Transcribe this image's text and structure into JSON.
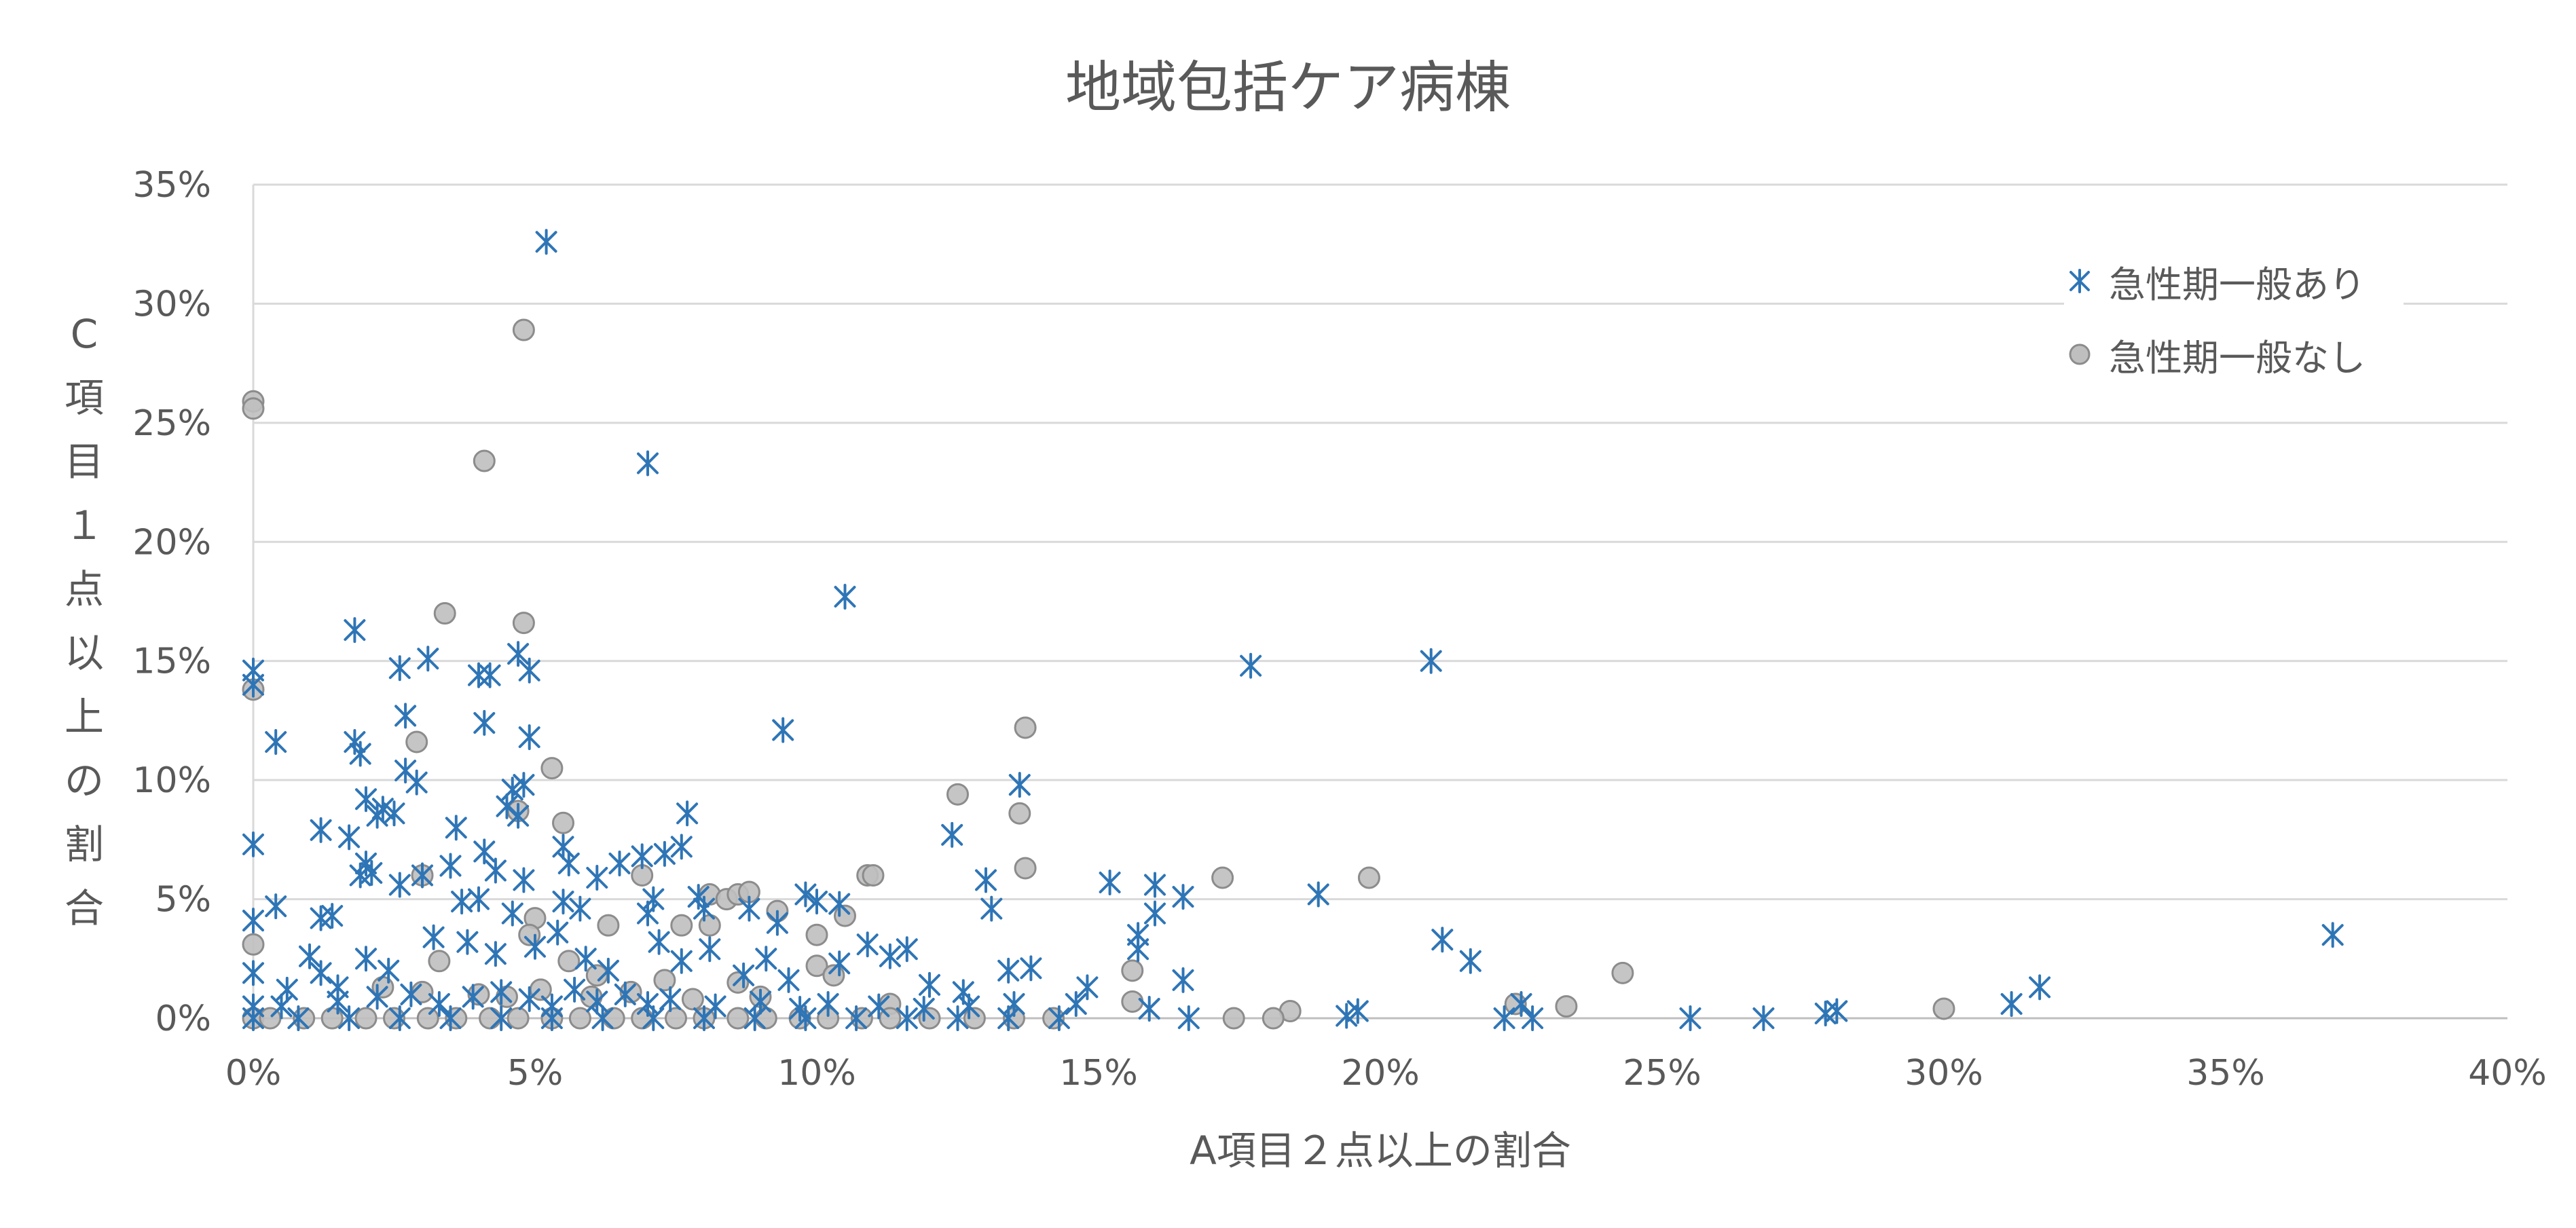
{
  "chart_data": {
    "type": "scatter",
    "title": "地域包括ケア病棟",
    "xlabel": "A項目２点以上の割合",
    "ylabel": "C項目１点以上の割合",
    "xlim": [
      0,
      40
    ],
    "ylim": [
      0,
      35
    ],
    "x_ticks": [
      0,
      5,
      10,
      15,
      20,
      25,
      30,
      35,
      40
    ],
    "y_ticks": [
      0,
      5,
      10,
      15,
      20,
      25,
      30,
      35
    ],
    "x_tick_labels": [
      "0%",
      "5%",
      "10%",
      "15%",
      "20%",
      "25%",
      "30%",
      "35%",
      "40%"
    ],
    "y_tick_labels": [
      "0%",
      "5%",
      "10%",
      "15%",
      "20%",
      "25%",
      "30%",
      "35%"
    ],
    "grid": "horizontal",
    "legend_position": "top-right",
    "colors": {
      "series_1": "#2e75b6",
      "series_2": "#bfbfbf",
      "series_2_edge": "#8c8c8c",
      "grid": "#d9d9d9",
      "text": "#595959"
    },
    "series": [
      {
        "name": "急性期一般あり",
        "marker": "asterisk",
        "points": [
          [
            5.2,
            32.6
          ],
          [
            7.0,
            23.3
          ],
          [
            10.5,
            17.7
          ],
          [
            1.8,
            16.3
          ],
          [
            17.7,
            14.8
          ],
          [
            20.9,
            15.0
          ],
          [
            0.0,
            14.6
          ],
          [
            0.0,
            14.0
          ],
          [
            2.6,
            14.7
          ],
          [
            3.1,
            15.1
          ],
          [
            4.0,
            14.4
          ],
          [
            4.2,
            14.4
          ],
          [
            4.7,
            15.3
          ],
          [
            4.9,
            14.6
          ],
          [
            9.4,
            12.1
          ],
          [
            0.4,
            11.6
          ],
          [
            1.8,
            11.6
          ],
          [
            1.9,
            11.1
          ],
          [
            4.1,
            12.4
          ],
          [
            4.9,
            11.8
          ],
          [
            2.7,
            12.7
          ],
          [
            2.9,
            9.9
          ],
          [
            2.7,
            10.4
          ],
          [
            13.6,
            9.8
          ],
          [
            4.6,
            9.6
          ],
          [
            4.8,
            9.8
          ],
          [
            4.5,
            8.9
          ],
          [
            4.7,
            8.5
          ],
          [
            7.7,
            8.6
          ],
          [
            2.0,
            9.2
          ],
          [
            2.3,
            8.8
          ],
          [
            2.5,
            8.6
          ],
          [
            2.2,
            8.5
          ],
          [
            1.2,
            7.9
          ],
          [
            3.6,
            8.0
          ],
          [
            0.0,
            7.3
          ],
          [
            4.1,
            7.0
          ],
          [
            7.6,
            7.2
          ],
          [
            5.5,
            7.2
          ],
          [
            5.6,
            6.5
          ],
          [
            1.7,
            7.6
          ],
          [
            2.0,
            6.5
          ],
          [
            1.9,
            6.0
          ],
          [
            3.5,
            6.4
          ],
          [
            2.1,
            6.1
          ],
          [
            6.5,
            6.5
          ],
          [
            6.9,
            6.8
          ],
          [
            7.3,
            6.9
          ],
          [
            12.4,
            7.7
          ],
          [
            4.3,
            6.2
          ],
          [
            4.8,
            5.8
          ],
          [
            3.0,
            6.0
          ],
          [
            2.6,
            5.6
          ],
          [
            6.1,
            5.9
          ],
          [
            13.0,
            5.8
          ],
          [
            15.2,
            5.7
          ],
          [
            16.0,
            5.6
          ],
          [
            16.5,
            5.1
          ],
          [
            18.9,
            5.2
          ],
          [
            13.1,
            4.6
          ],
          [
            7.1,
            5.0
          ],
          [
            7.9,
            5.1
          ],
          [
            9.8,
            5.2
          ],
          [
            10.0,
            4.9
          ],
          [
            10.4,
            4.8
          ],
          [
            3.7,
            4.9
          ],
          [
            4.0,
            5.0
          ],
          [
            5.5,
            4.9
          ],
          [
            5.8,
            4.6
          ],
          [
            0.0,
            4.1
          ],
          [
            0.4,
            4.7
          ],
          [
            1.4,
            4.3
          ],
          [
            1.2,
            4.2
          ],
          [
            4.6,
            4.4
          ],
          [
            7.0,
            4.4
          ],
          [
            8.0,
            4.6
          ],
          [
            8.8,
            4.6
          ],
          [
            9.3,
            4.0
          ],
          [
            16.0,
            4.4
          ],
          [
            15.7,
            3.5
          ],
          [
            15.7,
            2.9
          ],
          [
            21.1,
            3.3
          ],
          [
            21.6,
            2.4
          ],
          [
            36.9,
            3.5
          ],
          [
            0.0,
            1.9
          ],
          [
            0.6,
            1.2
          ],
          [
            1.0,
            2.6
          ],
          [
            1.2,
            1.9
          ],
          [
            1.5,
            1.3
          ],
          [
            2.0,
            2.5
          ],
          [
            2.4,
            2.0
          ],
          [
            3.2,
            3.4
          ],
          [
            3.8,
            3.2
          ],
          [
            4.3,
            2.7
          ],
          [
            5.0,
            3.0
          ],
          [
            5.4,
            3.6
          ],
          [
            5.9,
            2.5
          ],
          [
            6.3,
            2.0
          ],
          [
            7.2,
            3.2
          ],
          [
            7.6,
            2.4
          ],
          [
            8.1,
            2.9
          ],
          [
            8.7,
            1.8
          ],
          [
            9.1,
            2.5
          ],
          [
            9.5,
            1.6
          ],
          [
            10.4,
            2.3
          ],
          [
            10.9,
            3.1
          ],
          [
            11.3,
            2.6
          ],
          [
            11.6,
            2.9
          ],
          [
            12.0,
            1.4
          ],
          [
            12.6,
            1.1
          ],
          [
            13.4,
            2.0
          ],
          [
            13.8,
            2.1
          ],
          [
            14.6,
            0.6
          ],
          [
            14.8,
            1.3
          ],
          [
            16.5,
            1.6
          ],
          [
            22.5,
            0.6
          ],
          [
            31.2,
            0.6
          ],
          [
            31.7,
            1.3
          ],
          [
            15.9,
            0.4
          ],
          [
            19.4,
            0.1
          ],
          [
            19.6,
            0.3
          ],
          [
            27.9,
            0.2
          ],
          [
            28.1,
            0.3
          ],
          [
            0.0,
            0.5
          ],
          [
            0.5,
            0.5
          ],
          [
            1.5,
            0.7
          ],
          [
            2.2,
            0.9
          ],
          [
            2.8,
            1.0
          ],
          [
            3.3,
            0.6
          ],
          [
            3.9,
            0.9
          ],
          [
            4.4,
            1.1
          ],
          [
            4.9,
            0.8
          ],
          [
            5.3,
            0.5
          ],
          [
            5.7,
            1.2
          ],
          [
            6.1,
            0.7
          ],
          [
            6.6,
            1.0
          ],
          [
            7.0,
            0.6
          ],
          [
            7.4,
            0.8
          ],
          [
            8.2,
            0.5
          ],
          [
            9.0,
            0.7
          ],
          [
            9.7,
            0.4
          ],
          [
            10.2,
            0.6
          ],
          [
            11.1,
            0.5
          ],
          [
            11.9,
            0.4
          ],
          [
            12.7,
            0.5
          ],
          [
            13.5,
            0.6
          ],
          [
            0.0,
            0.0
          ],
          [
            0.8,
            0.0
          ],
          [
            1.7,
            0.0
          ],
          [
            2.6,
            0.0
          ],
          [
            3.5,
            0.0
          ],
          [
            4.4,
            0.0
          ],
          [
            5.3,
            0.0
          ],
          [
            6.2,
            0.0
          ],
          [
            7.1,
            0.0
          ],
          [
            8.0,
            0.0
          ],
          [
            8.9,
            0.0
          ],
          [
            9.8,
            0.0
          ],
          [
            10.7,
            0.0
          ],
          [
            11.6,
            0.0
          ],
          [
            12.5,
            0.0
          ],
          [
            13.4,
            0.0
          ],
          [
            14.3,
            0.0
          ],
          [
            16.6,
            0.0
          ],
          [
            22.2,
            0.0
          ],
          [
            22.7,
            0.0
          ],
          [
            25.5,
            0.0
          ],
          [
            26.8,
            0.0
          ]
        ]
      },
      {
        "name": "急性期一般なし",
        "marker": "circle",
        "points": [
          [
            4.8,
            28.9
          ],
          [
            0.0,
            25.9
          ],
          [
            0.0,
            25.6
          ],
          [
            4.1,
            23.4
          ],
          [
            3.4,
            17.0
          ],
          [
            4.8,
            16.6
          ],
          [
            0.0,
            13.8
          ],
          [
            13.7,
            12.2
          ],
          [
            2.9,
            11.6
          ],
          [
            5.3,
            10.5
          ],
          [
            12.5,
            9.4
          ],
          [
            4.7,
            8.7
          ],
          [
            13.6,
            8.6
          ],
          [
            5.5,
            8.2
          ],
          [
            13.7,
            6.3
          ],
          [
            3.0,
            6.0
          ],
          [
            6.9,
            6.0
          ],
          [
            10.9,
            6.0
          ],
          [
            11.0,
            6.0
          ],
          [
            17.2,
            5.9
          ],
          [
            19.8,
            5.9
          ],
          [
            8.1,
            5.2
          ],
          [
            8.4,
            5.0
          ],
          [
            8.6,
            5.2
          ],
          [
            8.8,
            5.3
          ],
          [
            9.3,
            4.5
          ],
          [
            10.5,
            4.3
          ],
          [
            5.0,
            4.2
          ],
          [
            7.6,
            3.9
          ],
          [
            6.3,
            3.9
          ],
          [
            4.9,
            3.5
          ],
          [
            8.1,
            3.9
          ],
          [
            10.0,
            3.5
          ],
          [
            0.0,
            3.1
          ],
          [
            15.6,
            2.0
          ],
          [
            24.3,
            1.9
          ],
          [
            3.3,
            2.4
          ],
          [
            5.6,
            2.4
          ],
          [
            10.0,
            2.2
          ],
          [
            10.3,
            1.8
          ],
          [
            6.1,
            1.8
          ],
          [
            7.3,
            1.6
          ],
          [
            8.6,
            1.5
          ],
          [
            2.3,
            1.3
          ],
          [
            3.0,
            1.1
          ],
          [
            4.0,
            1.0
          ],
          [
            4.5,
            0.9
          ],
          [
            5.1,
            1.2
          ],
          [
            6.0,
            0.9
          ],
          [
            6.7,
            1.1
          ],
          [
            7.8,
            0.8
          ],
          [
            9.0,
            0.9
          ],
          [
            11.3,
            0.6
          ],
          [
            15.6,
            0.7
          ],
          [
            22.4,
            0.6
          ],
          [
            23.3,
            0.5
          ],
          [
            30.0,
            0.4
          ],
          [
            18.4,
            0.3
          ],
          [
            0.0,
            0.0
          ],
          [
            0.3,
            0.0
          ],
          [
            0.9,
            0.0
          ],
          [
            1.4,
            0.0
          ],
          [
            2.0,
            0.0
          ],
          [
            2.5,
            0.0
          ],
          [
            3.1,
            0.0
          ],
          [
            3.6,
            0.0
          ],
          [
            4.2,
            0.0
          ],
          [
            4.7,
            0.0
          ],
          [
            5.3,
            0.0
          ],
          [
            5.8,
            0.0
          ],
          [
            6.4,
            0.0
          ],
          [
            6.9,
            0.0
          ],
          [
            7.5,
            0.0
          ],
          [
            8.0,
            0.0
          ],
          [
            8.6,
            0.0
          ],
          [
            9.1,
            0.0
          ],
          [
            9.7,
            0.0
          ],
          [
            10.2,
            0.0
          ],
          [
            10.8,
            0.0
          ],
          [
            11.3,
            0.0
          ],
          [
            12.0,
            0.0
          ],
          [
            12.8,
            0.0
          ],
          [
            13.5,
            0.0
          ],
          [
            14.2,
            0.0
          ],
          [
            17.4,
            0.0
          ],
          [
            18.1,
            0.0
          ]
        ]
      }
    ]
  }
}
